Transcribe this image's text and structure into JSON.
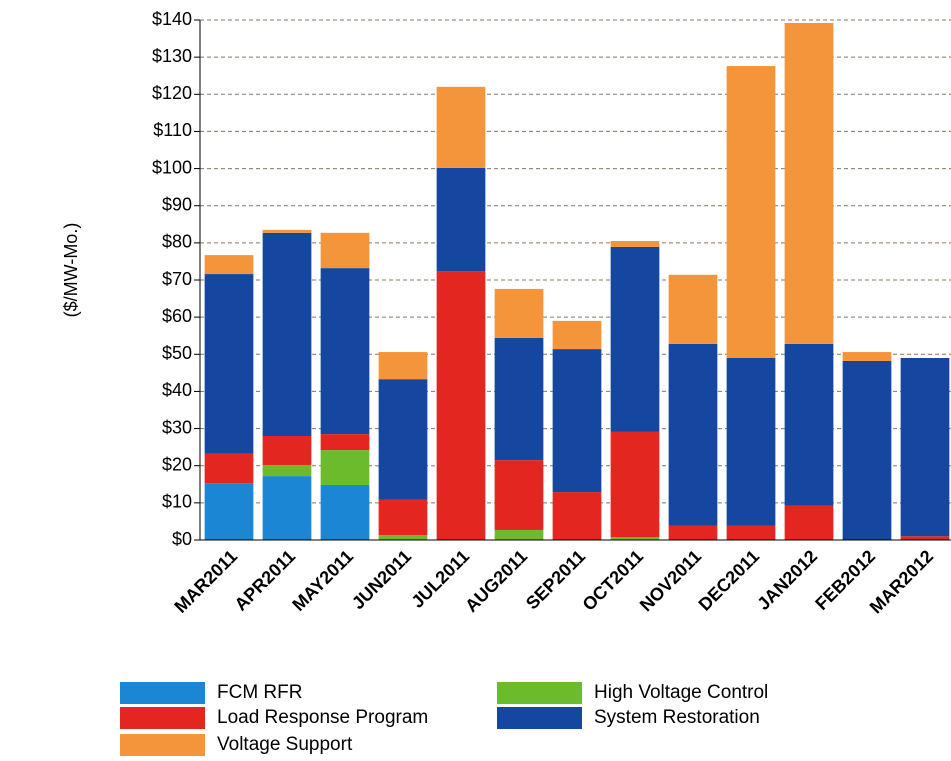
{
  "chart_data": {
    "type": "stacked-bar",
    "y_label": "($/MW-Mo.)",
    "categories": [
      "MAR2011",
      "APR2011",
      "MAY2011",
      "JUN2011",
      "JUL2011",
      "AUG2011",
      "SEP2011",
      "OCT2011",
      "NOV2011",
      "DEC2011",
      "JAN2012",
      "FEB2012",
      "MAR2012"
    ],
    "series": [
      {
        "name": "FCM RFR",
        "color": "#1a86d4",
        "values": [
          15.3,
          17.2,
          14.8,
          0,
          0,
          0,
          0,
          0,
          0,
          0,
          0,
          0,
          0
        ]
      },
      {
        "name": "High Voltage Control",
        "color": "#6cbb2c",
        "values": [
          0,
          3.0,
          9.4,
          1.3,
          0,
          2.7,
          0,
          0.8,
          0,
          0,
          0,
          0,
          0
        ]
      },
      {
        "name": "Load Response Program",
        "color": "#e3261f",
        "values": [
          7.9,
          7.8,
          4.3,
          9.5,
          72.4,
          18.8,
          12.9,
          28.3,
          3.8,
          3.8,
          9.2,
          0,
          1.0
        ]
      },
      {
        "name": "System Restoration",
        "color": "#1547a0",
        "values": [
          48.4,
          54.7,
          44.7,
          32.5,
          27.8,
          32.9,
          38.5,
          49.8,
          49.0,
          45.2,
          43.6,
          48.2,
          48.0
        ]
      },
      {
        "name": "Voltage Support",
        "color": "#f5953b",
        "values": [
          5.1,
          0.8,
          9.5,
          7.3,
          21.8,
          13.2,
          7.6,
          1.6,
          18.6,
          78.6,
          86.4,
          2.4,
          0
        ]
      }
    ],
    "ylim": [
      0,
      140
    ],
    "yticks": [
      {
        "value": 0,
        "label": "$0"
      },
      {
        "value": 10,
        "label": "$10"
      },
      {
        "value": 20,
        "label": "$20"
      },
      {
        "value": 30,
        "label": "$30"
      },
      {
        "value": 40,
        "label": "$40"
      },
      {
        "value": 50,
        "label": "$50"
      },
      {
        "value": 60,
        "label": "$60"
      },
      {
        "value": 70,
        "label": "$70"
      },
      {
        "value": 80,
        "label": "$80"
      },
      {
        "value": 90,
        "label": "$90"
      },
      {
        "value": 100,
        "label": "$100"
      },
      {
        "value": 110,
        "label": "$110"
      },
      {
        "value": 120,
        "label": "$120"
      },
      {
        "value": 130,
        "label": "$130"
      },
      {
        "value": 140,
        "label": "$140"
      }
    ],
    "grid": true
  }
}
